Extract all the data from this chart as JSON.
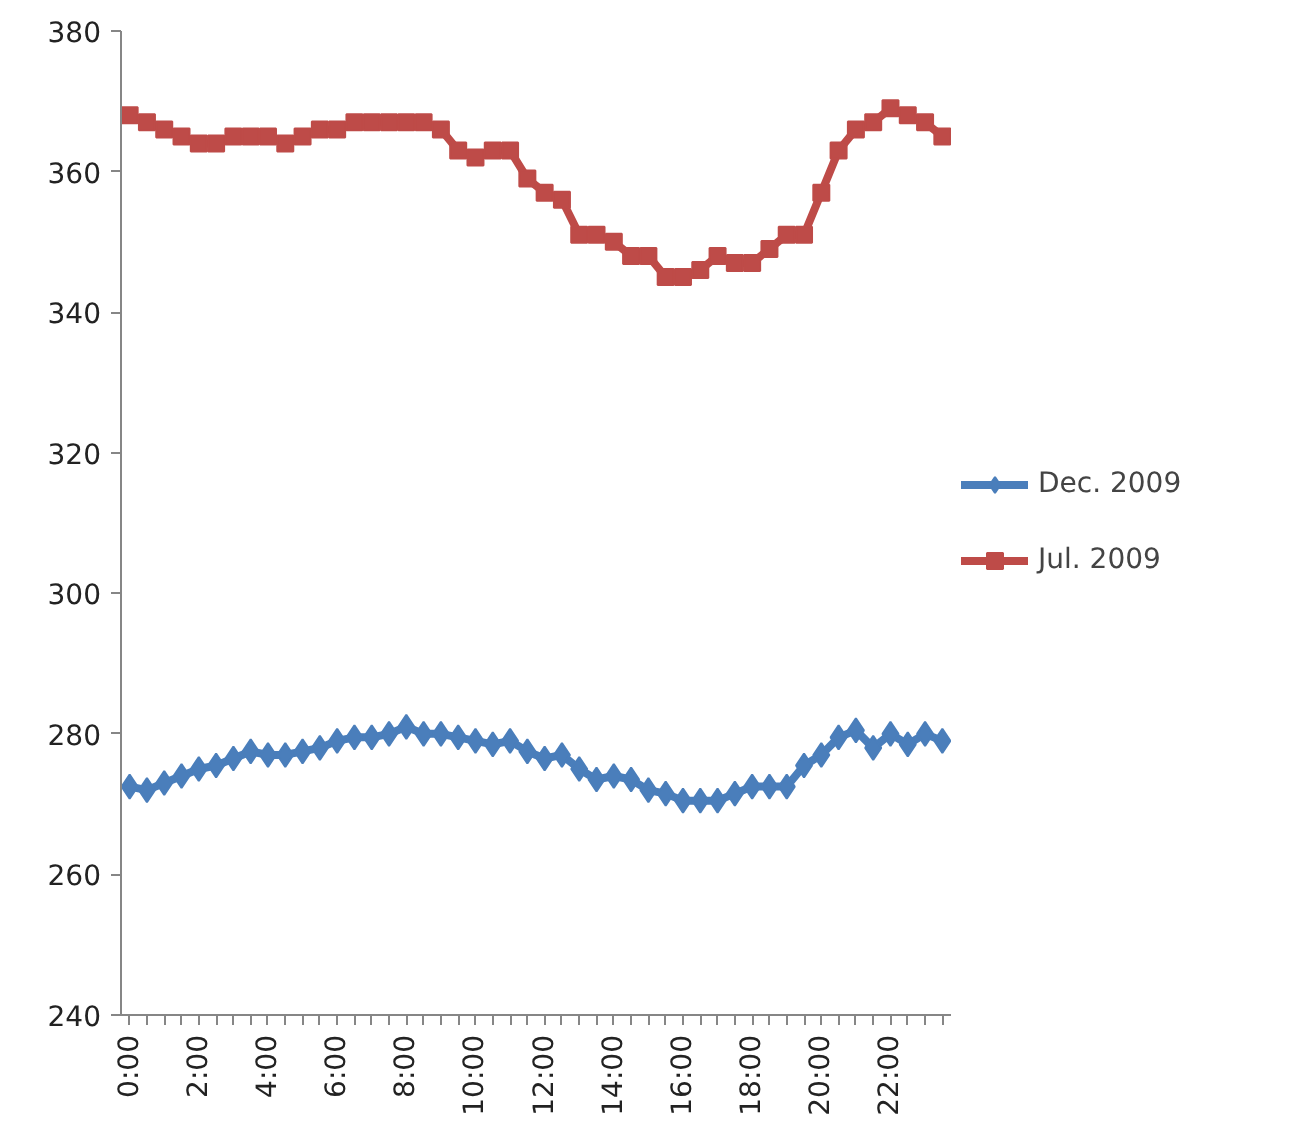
{
  "chart_data": {
    "type": "line",
    "categories": [
      "0:00",
      null,
      null,
      null,
      "2:00",
      null,
      null,
      null,
      "4:00",
      null,
      null,
      null,
      "6:00",
      null,
      null,
      null,
      "8:00",
      null,
      null,
      null,
      "10:00",
      null,
      null,
      null,
      "12:00",
      null,
      null,
      null,
      "14:00",
      null,
      null,
      null,
      "16:00",
      null,
      null,
      null,
      "18:00",
      null,
      null,
      null,
      "20:00",
      null,
      null,
      null,
      "22:00",
      null,
      null,
      null
    ],
    "series": [
      {
        "name": "Dec. 2009",
        "color": "#4a7ebb",
        "marker": "diamond",
        "values": [
          272.5,
          272,
          273,
          274,
          275,
          275.5,
          276.5,
          277.5,
          277,
          277,
          277.5,
          278,
          279,
          279.5,
          279.5,
          280,
          281,
          280,
          280,
          279.5,
          279,
          278.5,
          279,
          277.5,
          276.5,
          277,
          275,
          273.5,
          274,
          273.5,
          272,
          271.5,
          270.5,
          270.5,
          270.5,
          271.5,
          272.5,
          272.5,
          272.5,
          275.5,
          277,
          279.5,
          280.5,
          278,
          280,
          278.5,
          280,
          279
        ]
      },
      {
        "name": "Jul. 2009",
        "color": "#be4b48",
        "marker": "square",
        "values": [
          368,
          367,
          366,
          365,
          364,
          364,
          365,
          365,
          365,
          364,
          365,
          366,
          366,
          367,
          367,
          367,
          367,
          367,
          366,
          363,
          362,
          363,
          363,
          359,
          357,
          356,
          351,
          351,
          350,
          348,
          348,
          345,
          345,
          346,
          348,
          347,
          347,
          349,
          351,
          351,
          357,
          363,
          366,
          367,
          369,
          368,
          367,
          365
        ]
      }
    ],
    "ylim": [
      240,
      380
    ],
    "yticks": [
      240,
      260,
      280,
      300,
      320,
      340,
      360,
      380
    ],
    "grid": false,
    "legend": "right",
    "line_style": "solid"
  }
}
